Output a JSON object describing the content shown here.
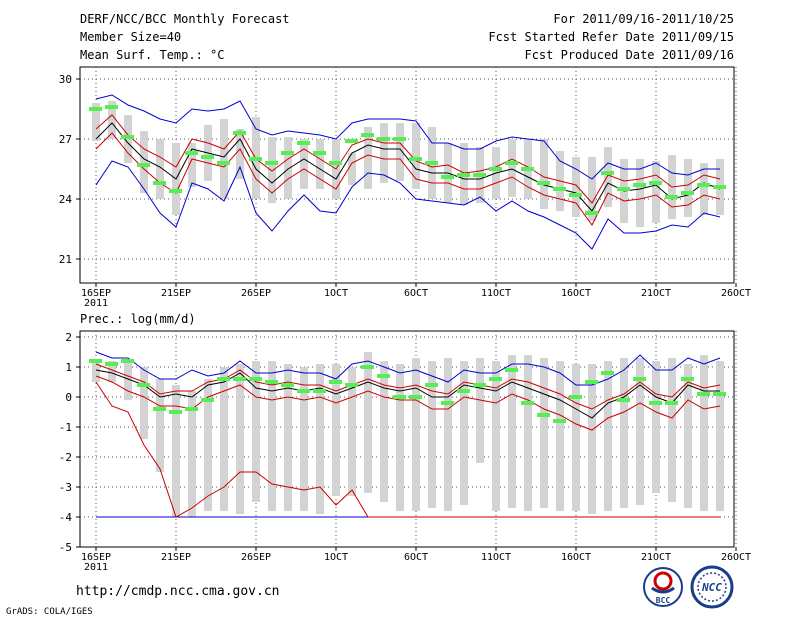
{
  "header": {
    "title": "DERF/NCC/BCC Monthly Forecast",
    "member_size": "Member Size=40",
    "variable_top": "Mean Surf. Temp.: °C",
    "period": "For 2011/09/16-2011/10/25",
    "started": "Fcst Started Refer Date 2011/09/15",
    "produced": "Fcst Produced Date 2011/09/16"
  },
  "footer": {
    "url": "http://cmdp.ncc.cma.gov.cn",
    "grads": "GrADS: COLA/IGES",
    "logo_bcc": "BCC",
    "logo_ncc": "NCC"
  },
  "colors": {
    "box": "#d3d3d3",
    "median": "#000000",
    "ci": "#cc0000",
    "envelope": "#0000cc",
    "marker": "#55ee55",
    "grid": "#555555"
  },
  "chart_data": [
    {
      "type": "box",
      "title": "Mean Surf. Temp.: °C",
      "ylim": [
        19.8,
        30.6
      ],
      "yticks": [
        21,
        24,
        27,
        30
      ],
      "x_label_year": "2011",
      "x_ticks": [
        {
          "day": 0,
          "label": "16SEP"
        },
        {
          "day": 5,
          "label": "21SEP"
        },
        {
          "day": 10,
          "label": "26SEP"
        },
        {
          "day": 15,
          "label": "1OCT"
        },
        {
          "day": 20,
          "label": "6OCT"
        },
        {
          "day": 25,
          "label": "11OCT"
        },
        {
          "day": 30,
          "label": "16OCT"
        },
        {
          "day": 35,
          "label": "21OCT"
        },
        {
          "day": 40,
          "label": "26OCT"
        }
      ],
      "series": {
        "box_high": [
          28.8,
          28.9,
          28.2,
          27.4,
          27.0,
          26.8,
          26.8,
          27.7,
          28.0,
          27.5,
          28.1,
          27.1,
          27.1,
          27.0,
          27.0,
          27.0,
          26.3,
          27.6,
          27.8,
          27.8,
          27.8,
          27.6,
          26.8,
          26.8,
          26.6,
          26.6,
          27.0,
          27.0,
          27.0,
          26.4,
          26.1,
          26.1,
          26.6,
          26.0,
          26.0,
          25.9,
          26.2,
          26.0,
          25.8,
          26.0
        ],
        "box_low": [
          26.9,
          27.0,
          25.8,
          24.3,
          24.0,
          23.2,
          24.6,
          24.9,
          24.0,
          25.0,
          24.0,
          23.8,
          24.0,
          24.5,
          24.5,
          24.0,
          24.7,
          24.5,
          24.8,
          24.9,
          24.5,
          24.0,
          23.8,
          23.7,
          23.8,
          24.0,
          24.1,
          24.0,
          23.5,
          23.4,
          23.1,
          22.9,
          23.6,
          22.8,
          22.6,
          22.8,
          23.0,
          23.1,
          23.2,
          23.2
        ],
        "env_high": [
          29.0,
          29.2,
          28.7,
          28.4,
          28.0,
          27.8,
          28.5,
          28.4,
          28.5,
          28.9,
          27.5,
          27.2,
          27.4,
          27.3,
          27.2,
          27.0,
          27.8,
          28.0,
          28.0,
          28.0,
          27.9,
          26.8,
          26.8,
          26.5,
          26.5,
          26.9,
          27.1,
          27.0,
          26.9,
          25.9,
          25.5,
          25.0,
          25.8,
          25.5,
          25.5,
          25.8,
          25.3,
          25.2,
          25.5,
          25.5
        ],
        "ci_high": [
          27.5,
          28.2,
          27.2,
          26.5,
          26.1,
          25.6,
          27.0,
          26.8,
          26.5,
          27.4,
          26.0,
          25.4,
          26.0,
          26.5,
          26.0,
          25.5,
          26.7,
          27.0,
          26.8,
          26.8,
          25.9,
          25.6,
          25.7,
          25.3,
          25.4,
          25.6,
          26.0,
          25.6,
          25.1,
          24.9,
          24.7,
          23.8,
          25.2,
          24.9,
          25.0,
          25.2,
          24.6,
          24.7,
          25.2,
          25.0
        ],
        "median": [
          27.0,
          27.8,
          26.8,
          26.0,
          25.6,
          25.0,
          26.5,
          26.3,
          26.1,
          27.0,
          25.5,
          24.8,
          25.5,
          26.0,
          25.5,
          25.0,
          26.3,
          26.7,
          26.5,
          26.5,
          25.5,
          25.3,
          25.3,
          25.0,
          25.0,
          25.3,
          25.5,
          25.1,
          24.7,
          24.5,
          24.3,
          23.4,
          24.8,
          24.4,
          24.5,
          24.7,
          24.0,
          24.2,
          24.8,
          24.5
        ],
        "ci_low": [
          26.5,
          27.3,
          26.3,
          25.5,
          24.8,
          24.3,
          26.0,
          25.8,
          25.6,
          26.5,
          25.0,
          24.3,
          25.0,
          25.5,
          25.0,
          24.5,
          25.8,
          26.2,
          26.0,
          26.0,
          25.0,
          24.8,
          24.8,
          24.5,
          24.5,
          24.8,
          25.1,
          24.6,
          24.2,
          24.0,
          23.8,
          22.7,
          24.3,
          23.9,
          24.0,
          24.2,
          23.6,
          23.7,
          24.2,
          24.0
        ],
        "env_low": [
          24.7,
          25.9,
          25.6,
          24.5,
          23.3,
          22.6,
          24.8,
          24.5,
          23.9,
          25.6,
          23.3,
          22.4,
          23.4,
          24.2,
          23.4,
          23.3,
          24.6,
          25.3,
          25.2,
          24.8,
          24.0,
          23.9,
          23.8,
          23.7,
          24.1,
          23.4,
          23.9,
          23.4,
          23.1,
          22.7,
          22.3,
          21.5,
          23.0,
          22.3,
          22.3,
          22.4,
          22.7,
          22.6,
          23.3,
          23.1
        ],
        "marker": [
          28.5,
          28.6,
          27.1,
          25.7,
          24.8,
          24.4,
          26.3,
          26.1,
          25.8,
          27.3,
          26.0,
          25.8,
          26.3,
          26.8,
          26.3,
          25.8,
          26.9,
          27.2,
          27.0,
          27.0,
          26.0,
          25.8,
          25.1,
          25.2,
          25.2,
          25.5,
          25.8,
          25.5,
          24.8,
          24.5,
          24.2,
          23.3,
          25.3,
          24.5,
          24.7,
          24.8,
          24.1,
          24.3,
          24.7,
          24.6
        ]
      }
    },
    {
      "type": "box",
      "title": "Prec.: log(mm/d)",
      "ylim": [
        -5,
        2.2
      ],
      "yticks": [
        -5,
        -4,
        -3,
        -2,
        -1,
        0,
        1,
        2
      ],
      "x_label_year": "2011",
      "x_ticks": [
        {
          "day": 0,
          "label": "16SEP"
        },
        {
          "day": 5,
          "label": "21SEP"
        },
        {
          "day": 10,
          "label": "26SEP"
        },
        {
          "day": 15,
          "label": "1OCT"
        },
        {
          "day": 20,
          "label": "6OCT"
        },
        {
          "day": 25,
          "label": "11OCT"
        },
        {
          "day": 30,
          "label": "16OCT"
        },
        {
          "day": 35,
          "label": "21OCT"
        },
        {
          "day": 40,
          "label": "26OCT"
        }
      ],
      "series": {
        "box_high": [
          1.2,
          1.2,
          1.2,
          1.0,
          0.6,
          0.4,
          0.2,
          0.6,
          1.0,
          1.1,
          1.2,
          1.2,
          1.1,
          1.0,
          1.1,
          1.1,
          1.0,
          1.5,
          1.2,
          1.1,
          1.3,
          1.2,
          1.3,
          1.2,
          1.3,
          1.2,
          1.4,
          1.4,
          1.3,
          1.2,
          1.1,
          1.1,
          1.2,
          1.3,
          1.3,
          1.2,
          1.3,
          1.1,
          1.4,
          1.2
        ],
        "box_low": [
          0.5,
          0.5,
          -0.1,
          -1.4,
          -2.5,
          -4.0,
          -4.0,
          -3.8,
          -3.8,
          -3.9,
          -3.5,
          -3.8,
          -3.8,
          -3.8,
          -3.9,
          -3.3,
          -3.3,
          -3.2,
          -3.5,
          -3.8,
          -3.8,
          -3.7,
          -3.8,
          -3.6,
          -2.2,
          -3.8,
          -3.7,
          -3.8,
          -3.7,
          -3.8,
          -3.8,
          -3.9,
          -3.8,
          -3.7,
          -3.6,
          -3.2,
          -3.5,
          -3.7,
          -3.8,
          -3.8
        ],
        "env_high": [
          1.5,
          1.3,
          1.3,
          0.9,
          0.6,
          0.6,
          0.9,
          0.7,
          0.8,
          1.2,
          0.8,
          0.8,
          0.9,
          0.8,
          0.8,
          0.6,
          1.1,
          1.2,
          1.0,
          0.8,
          0.9,
          0.7,
          0.5,
          0.9,
          0.8,
          0.8,
          1.1,
          1.1,
          1.0,
          0.8,
          0.4,
          0.4,
          0.6,
          0.9,
          1.4,
          0.9,
          0.9,
          1.3,
          1.1,
          1.3
        ],
        "ci_high": [
          1.1,
          0.9,
          0.7,
          0.5,
          0.1,
          0.2,
          0.2,
          0.5,
          0.6,
          0.9,
          0.5,
          0.4,
          0.5,
          0.4,
          0.4,
          0.2,
          0.4,
          0.6,
          0.4,
          0.3,
          0.4,
          0.2,
          0.1,
          0.5,
          0.4,
          0.3,
          0.6,
          0.5,
          0.3,
          0.1,
          -0.2,
          -0.4,
          -0.1,
          0.1,
          0.5,
          0.1,
          0.0,
          0.5,
          0.3,
          0.4
        ],
        "median": [
          0.9,
          0.8,
          0.6,
          0.4,
          0.0,
          0.1,
          0.0,
          0.4,
          0.5,
          0.8,
          0.3,
          0.2,
          0.3,
          0.2,
          0.3,
          0.1,
          0.3,
          0.5,
          0.3,
          0.2,
          0.3,
          0.0,
          0.0,
          0.4,
          0.3,
          0.2,
          0.5,
          0.3,
          0.1,
          -0.1,
          -0.4,
          -0.7,
          -0.2,
          0.0,
          0.4,
          0.0,
          -0.2,
          0.4,
          0.2,
          0.2
        ],
        "ci_low": [
          0.7,
          0.5,
          0.2,
          0.0,
          -0.3,
          -0.3,
          -0.4,
          0.0,
          0.2,
          0.4,
          0.0,
          -0.1,
          0.0,
          -0.1,
          0.0,
          -0.2,
          0.0,
          0.2,
          0.0,
          -0.1,
          -0.1,
          -0.4,
          -0.4,
          0.0,
          -0.1,
          -0.2,
          0.1,
          -0.1,
          -0.4,
          -0.6,
          -0.9,
          -1.1,
          -0.7,
          -0.5,
          -0.2,
          -0.5,
          -0.7,
          -0.1,
          -0.4,
          -0.3
        ],
        "pct_low": [
          0.5,
          -0.3,
          -0.5,
          -1.6,
          -2.4,
          -4.0,
          -3.7,
          -3.3,
          -3.0,
          -2.5,
          -2.5,
          -2.9,
          -3.0,
          -3.1,
          -3.0,
          -3.6,
          -3.1,
          -4.0,
          -4.0,
          -4.0,
          -4.0,
          -4.0,
          -4.0,
          -4.0,
          -4.0,
          -4.0,
          -4.0,
          -4.0,
          -4.0,
          -4.0,
          -4.0,
          -4.0,
          -4.0,
          -4.0,
          -4.0,
          -4.0,
          -4.0,
          -4.0,
          -4.0,
          -4.0
        ],
        "env_low": [
          -4.0,
          -4.0,
          -4.0,
          -4.0,
          -4.0,
          -4.0,
          -4.0,
          -4.0,
          -4.0,
          -4.0,
          -4.0,
          -4.0,
          -4.0,
          -4.0,
          -4.0,
          -4.0,
          -4.0,
          -4.0,
          -4.0,
          -4.0,
          -4.0,
          -4.0,
          -4.0,
          -4.0,
          -4.0,
          -4.0,
          -4.0,
          -4.0,
          -4.0,
          -4.0,
          -4.0,
          -4.0,
          -4.0,
          -4.0,
          -4.0,
          -4.0,
          -4.0,
          -4.0,
          -4.0,
          -4.0
        ],
        "marker": [
          1.2,
          1.1,
          1.2,
          0.4,
          -0.4,
          -0.5,
          -0.4,
          -0.1,
          0.6,
          0.6,
          0.6,
          0.5,
          0.4,
          0.2,
          0.2,
          0.5,
          0.4,
          1.0,
          0.7,
          0.0,
          0.0,
          0.4,
          -0.2,
          0.2,
          0.4,
          0.6,
          0.9,
          -0.2,
          -0.6,
          -0.8,
          0.0,
          0.5,
          0.8,
          -0.1,
          0.6,
          -0.2,
          -0.2,
          0.6,
          0.1,
          0.1
        ]
      }
    }
  ]
}
